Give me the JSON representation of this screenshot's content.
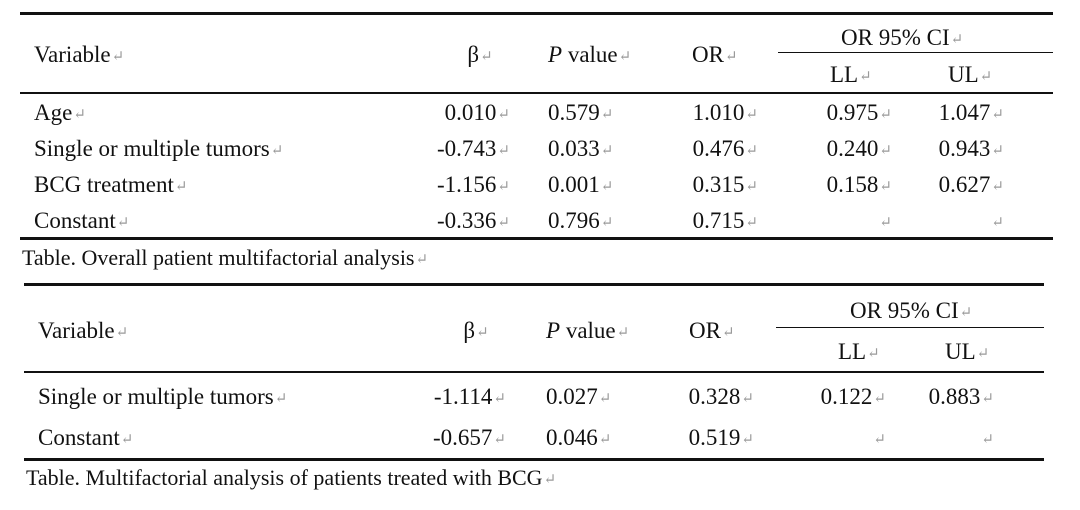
{
  "para_mark": "↵",
  "tables": [
    {
      "headers": {
        "variable": "Variable",
        "beta": "β",
        "p_italic": "P",
        "p_rest": " value",
        "or": "OR",
        "ci": "OR 95% CI",
        "ll": "LL",
        "ul": "UL"
      },
      "rows": [
        {
          "variable": "Age",
          "beta": "0.010",
          "p": "0.579",
          "or": "1.010",
          "ll": "0.975",
          "ul": "1.047"
        },
        {
          "variable": "Single or multiple tumors",
          "beta": "-0.743",
          "p": "0.033",
          "or": "0.476",
          "ll": "0.240",
          "ul": "0.943"
        },
        {
          "variable": "BCG treatment",
          "beta": "-1.156",
          "p": "0.001",
          "or": "0.315",
          "ll": "0.158",
          "ul": "0.627"
        },
        {
          "variable": "Constant",
          "beta": "-0.336",
          "p": "0.796",
          "or": "0.715",
          "ll": "",
          "ul": ""
        }
      ],
      "caption": "Table. Overall patient multifactorial analysis"
    },
    {
      "headers": {
        "variable": "Variable",
        "beta": "β",
        "p_italic": "P",
        "p_rest": " value",
        "or": "OR",
        "ci": "OR 95% CI",
        "ll": "LL",
        "ul": "UL"
      },
      "rows": [
        {
          "variable": "Single or multiple tumors",
          "beta": "-1.114",
          "p": "0.027",
          "or": "0.328",
          "ll": "0.122",
          "ul": "0.883"
        },
        {
          "variable": "Constant",
          "beta": "-0.657",
          "p": "0.046",
          "or": "0.519",
          "ll": "",
          "ul": ""
        }
      ],
      "caption": "Table. Multifactorial analysis of patients treated with BCG"
    }
  ]
}
